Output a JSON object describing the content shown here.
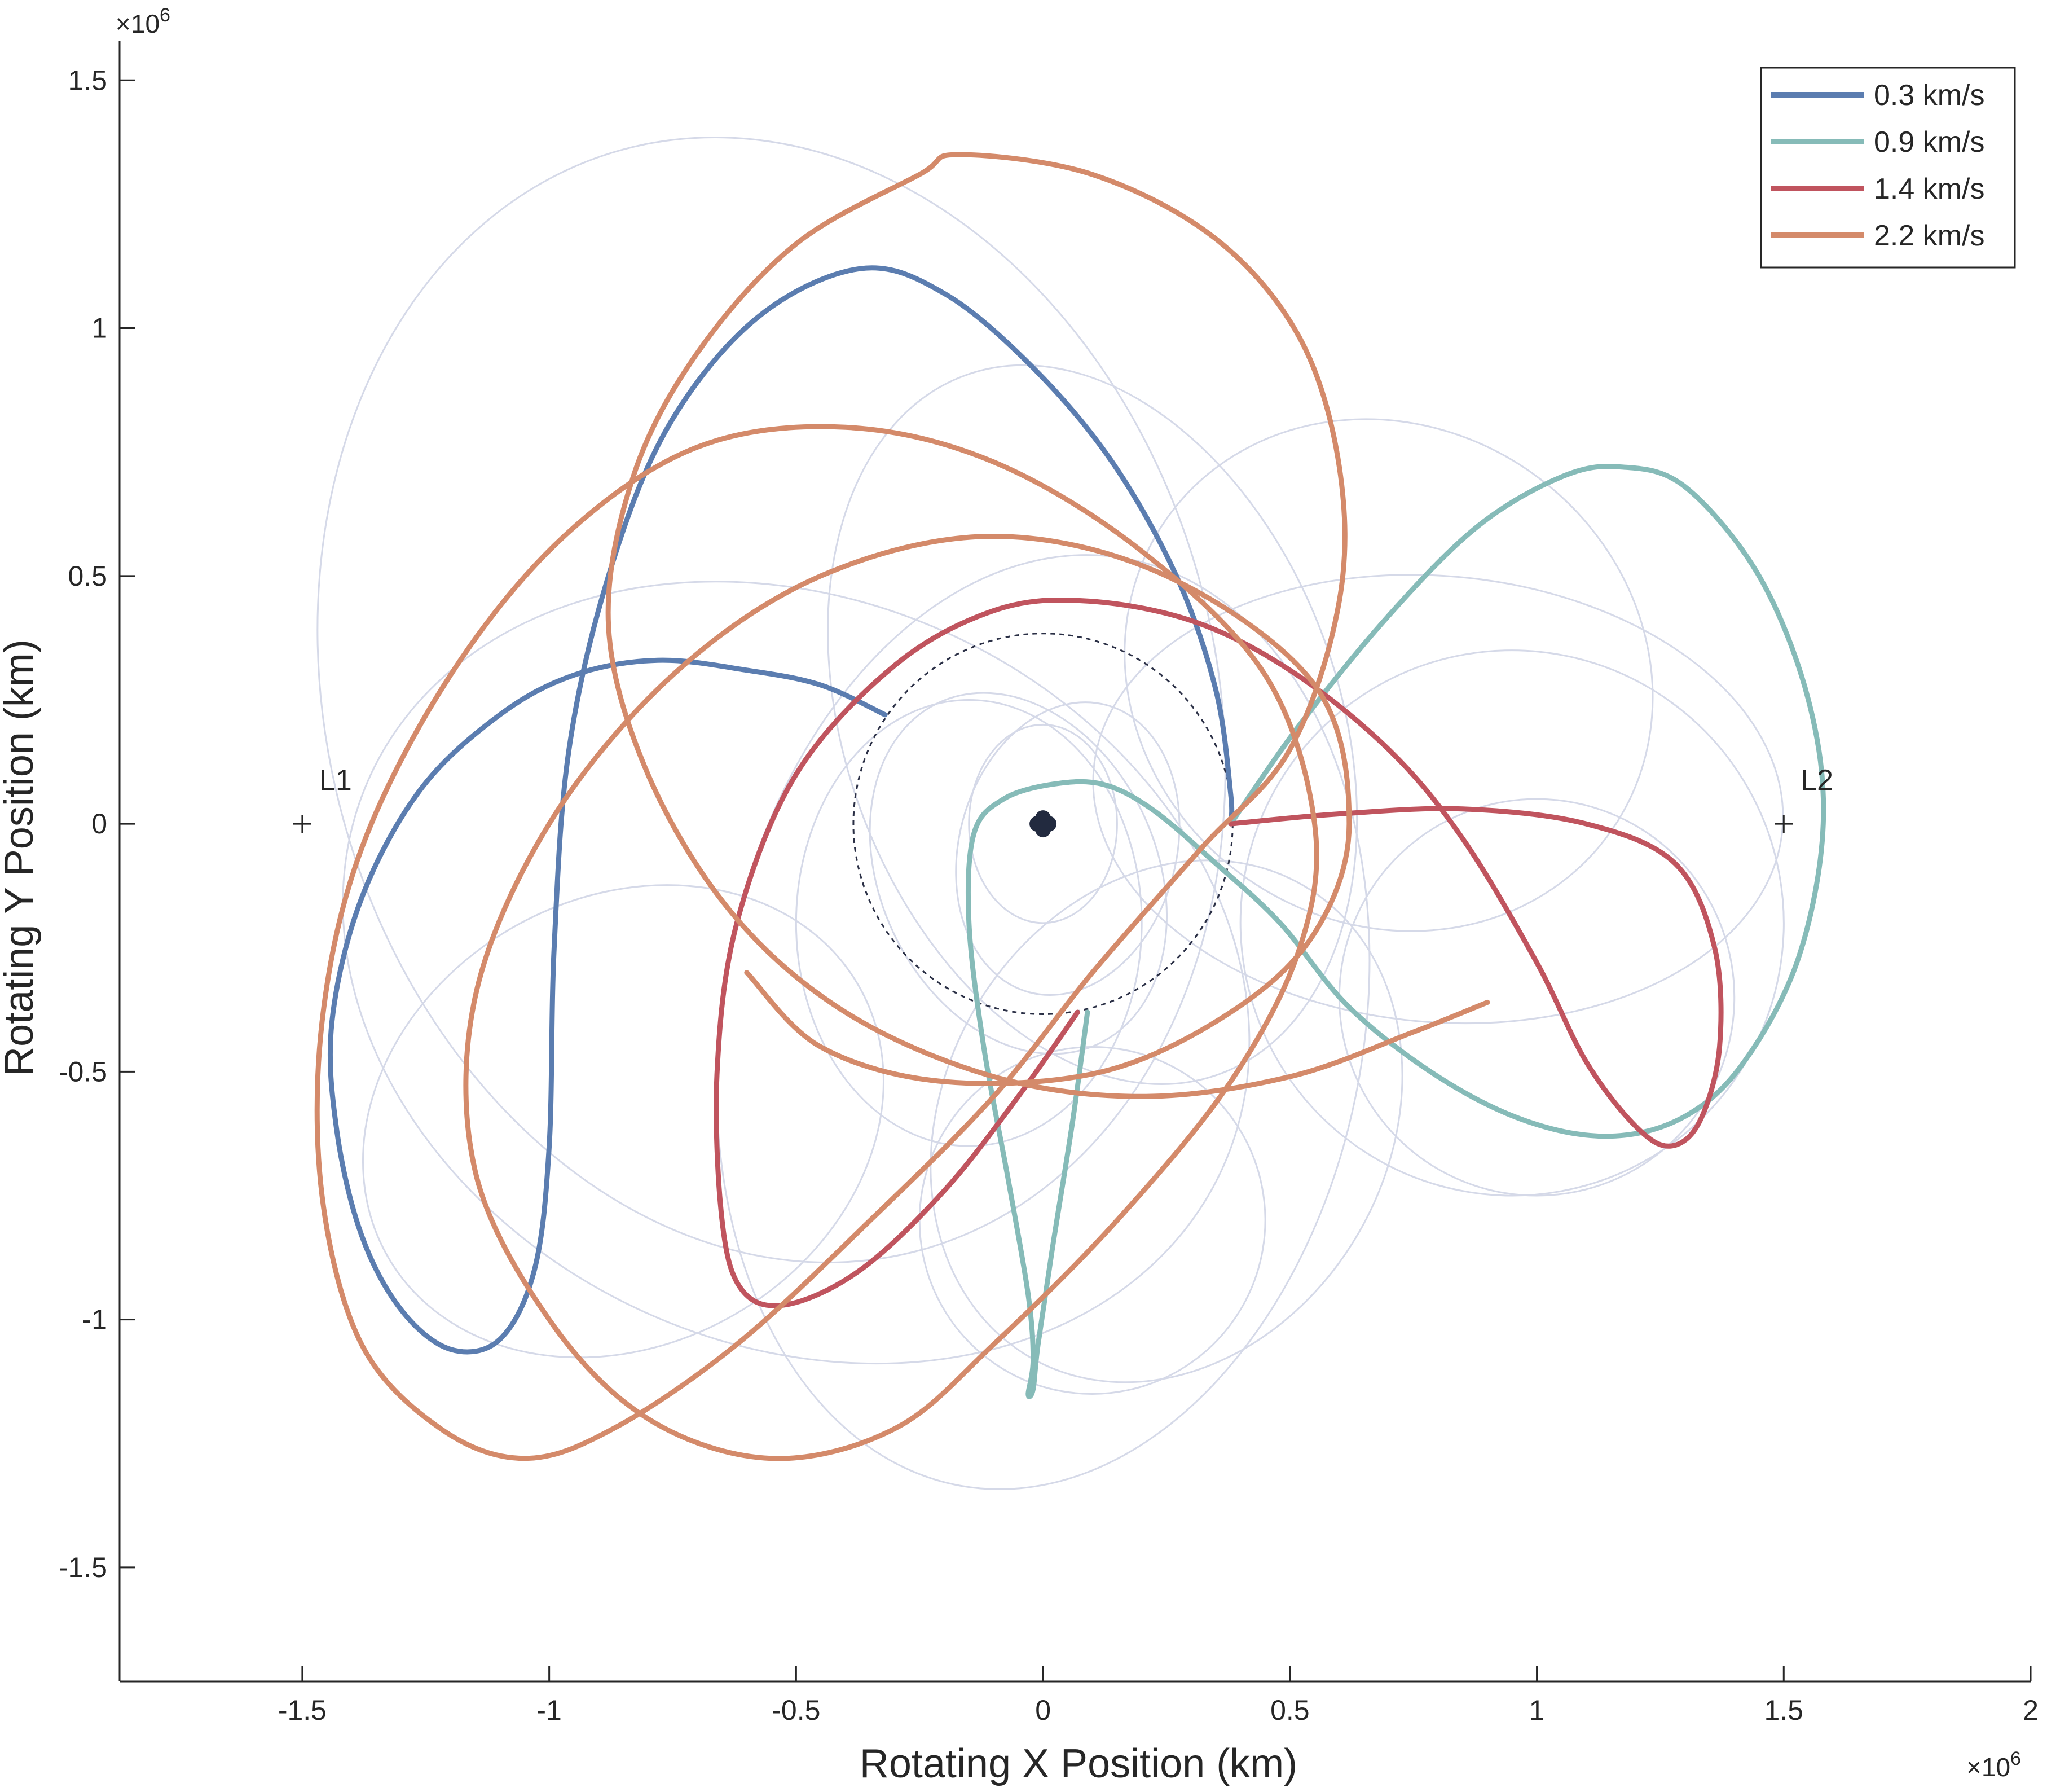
{
  "chart_data": {
    "type": "line",
    "xlabel": "Rotating X Position (km)",
    "ylabel": "Rotating Y Position (km)",
    "x_exponent": "×10",
    "x_exponent_power": "6",
    "y_exponent": "×10",
    "y_exponent_power": "6",
    "xlim": [
      -1.87,
      2.0
    ],
    "ylim": [
      -1.73,
      1.58
    ],
    "xticks": [
      -1.5,
      -1,
      -0.5,
      0,
      0.5,
      1,
      1.5,
      2
    ],
    "xtick_labels": [
      "-1.5",
      "-1",
      "-0.5",
      "0",
      "0.5",
      "1",
      "1.5",
      "2"
    ],
    "yticks": [
      -1.5,
      -1,
      -0.5,
      0,
      0.5,
      1,
      1.5
    ],
    "ytick_labels": [
      "-1.5",
      "-1",
      "-0.5",
      "0",
      "0.5",
      "1",
      "1.5"
    ],
    "grid": false,
    "legend_position": "top-right",
    "points": [
      {
        "label": "L1",
        "x": -1.5,
        "y": 0
      },
      {
        "label": "L2",
        "x": 1.5,
        "y": 0
      }
    ],
    "center_body": {
      "x": 0,
      "y": 0
    },
    "moon_orbit_radius": 0.384,
    "series": [
      {
        "name": "0.3 km/s",
        "color": "#5B7DB0",
        "points": [
          [
            -0.32,
            0.22
          ],
          [
            -0.45,
            0.28
          ],
          [
            -0.6,
            0.31
          ],
          [
            -0.78,
            0.33
          ],
          [
            -0.95,
            0.3
          ],
          [
            -1.1,
            0.22
          ],
          [
            -1.26,
            0.07
          ],
          [
            -1.38,
            -0.15
          ],
          [
            -1.44,
            -0.4
          ],
          [
            -1.43,
            -0.62
          ],
          [
            -1.38,
            -0.83
          ],
          [
            -1.3,
            -0.98
          ],
          [
            -1.2,
            -1.06
          ],
          [
            -1.1,
            -1.04
          ],
          [
            -1.03,
            -0.9
          ],
          [
            -1.0,
            -0.65
          ],
          [
            -0.99,
            -0.25
          ],
          [
            -0.96,
            0.15
          ],
          [
            -0.88,
            0.5
          ],
          [
            -0.76,
            0.8
          ],
          [
            -0.58,
            1.02
          ],
          [
            -0.37,
            1.12
          ],
          [
            -0.2,
            1.07
          ],
          [
            -0.02,
            0.92
          ],
          [
            0.14,
            0.73
          ],
          [
            0.27,
            0.5
          ],
          [
            0.35,
            0.27
          ],
          [
            0.38,
            0.06
          ],
          [
            0.38,
            0.0
          ]
        ]
      },
      {
        "name": "0.9 km/s",
        "color": "#86BBB8",
        "points": [
          [
            0.38,
            0.0
          ],
          [
            0.52,
            0.2
          ],
          [
            0.7,
            0.42
          ],
          [
            0.88,
            0.6
          ],
          [
            1.05,
            0.7
          ],
          [
            1.17,
            0.72
          ],
          [
            1.3,
            0.68
          ],
          [
            1.45,
            0.5
          ],
          [
            1.55,
            0.25
          ],
          [
            1.58,
            0.0
          ],
          [
            1.53,
            -0.27
          ],
          [
            1.42,
            -0.48
          ],
          [
            1.3,
            -0.59
          ],
          [
            1.15,
            -0.63
          ],
          [
            0.98,
            -0.6
          ],
          [
            0.8,
            -0.51
          ],
          [
            0.62,
            -0.37
          ],
          [
            0.48,
            -0.2
          ],
          [
            0.35,
            -0.08
          ],
          [
            0.22,
            0.03
          ],
          [
            0.12,
            0.08
          ],
          [
            0.02,
            0.08
          ],
          [
            -0.08,
            0.05
          ],
          [
            -0.14,
            -0.02
          ],
          [
            -0.15,
            -0.2
          ],
          [
            -0.12,
            -0.45
          ],
          [
            -0.07,
            -0.72
          ],
          [
            -0.03,
            -0.95
          ],
          [
            -0.02,
            -1.08
          ],
          [
            -0.03,
            -1.15
          ],
          [
            -0.02,
            -1.14
          ],
          [
            -0.01,
            -1.05
          ],
          [
            0.02,
            -0.85
          ],
          [
            0.06,
            -0.6
          ],
          [
            0.09,
            -0.38
          ]
        ]
      },
      {
        "name": "1.4 km/s",
        "color": "#C0545E",
        "points": [
          [
            0.07,
            -0.38
          ],
          [
            -0.05,
            -0.55
          ],
          [
            -0.2,
            -0.74
          ],
          [
            -0.37,
            -0.9
          ],
          [
            -0.52,
            -0.97
          ],
          [
            -0.61,
            -0.94
          ],
          [
            -0.65,
            -0.8
          ],
          [
            -0.66,
            -0.5
          ],
          [
            -0.62,
            -0.2
          ],
          [
            -0.5,
            0.1
          ],
          [
            -0.3,
            0.32
          ],
          [
            -0.1,
            0.43
          ],
          [
            0.08,
            0.45
          ],
          [
            0.3,
            0.41
          ],
          [
            0.5,
            0.31
          ],
          [
            0.7,
            0.15
          ],
          [
            0.85,
            -0.03
          ],
          [
            1.0,
            -0.28
          ],
          [
            1.1,
            -0.48
          ],
          [
            1.2,
            -0.61
          ],
          [
            1.27,
            -0.65
          ],
          [
            1.33,
            -0.6
          ],
          [
            1.37,
            -0.45
          ],
          [
            1.36,
            -0.25
          ],
          [
            1.28,
            -0.08
          ],
          [
            1.1,
            0.0
          ],
          [
            0.85,
            0.03
          ],
          [
            0.6,
            0.02
          ],
          [
            0.38,
            0.0
          ]
        ]
      },
      {
        "name": "2.2 km/s",
        "color": "#D48A6A",
        "points": [
          [
            0.9,
            -0.36
          ],
          [
            0.75,
            -0.42
          ],
          [
            0.5,
            -0.51
          ],
          [
            0.2,
            -0.55
          ],
          [
            -0.1,
            -0.51
          ],
          [
            -0.4,
            -0.38
          ],
          [
            -0.63,
            -0.18
          ],
          [
            -0.8,
            0.1
          ],
          [
            -0.88,
            0.4
          ],
          [
            -0.83,
            0.7
          ],
          [
            -0.7,
            0.95
          ],
          [
            -0.5,
            1.17
          ],
          [
            -0.25,
            1.31
          ],
          [
            -0.17,
            1.35
          ],
          [
            0.1,
            1.31
          ],
          [
            0.35,
            1.18
          ],
          [
            0.52,
            0.98
          ],
          [
            0.6,
            0.72
          ],
          [
            0.6,
            0.45
          ],
          [
            0.5,
            0.15
          ],
          [
            0.32,
            -0.05
          ],
          [
            0.1,
            -0.3
          ],
          [
            -0.1,
            -0.55
          ],
          [
            -0.35,
            -0.8
          ],
          [
            -0.62,
            -1.05
          ],
          [
            -0.87,
            -1.22
          ],
          [
            -1.05,
            -1.28
          ],
          [
            -1.22,
            -1.22
          ],
          [
            -1.38,
            -1.05
          ],
          [
            -1.46,
            -0.75
          ],
          [
            -1.46,
            -0.4
          ],
          [
            -1.38,
            -0.05
          ],
          [
            -1.2,
            0.3
          ],
          [
            -0.97,
            0.58
          ],
          [
            -0.7,
            0.76
          ],
          [
            -0.4,
            0.8
          ],
          [
            -0.1,
            0.73
          ],
          [
            0.2,
            0.55
          ],
          [
            0.45,
            0.3
          ],
          [
            0.55,
            0.0
          ],
          [
            0.52,
            -0.25
          ],
          [
            0.38,
            -0.52
          ],
          [
            0.15,
            -0.8
          ],
          [
            -0.1,
            -1.05
          ],
          [
            -0.3,
            -1.22
          ],
          [
            -0.55,
            -1.28
          ],
          [
            -0.8,
            -1.2
          ],
          [
            -1.0,
            -1.0
          ],
          [
            -1.15,
            -0.7
          ],
          [
            -1.15,
            -0.35
          ],
          [
            -1.0,
            0.0
          ],
          [
            -0.75,
            0.3
          ],
          [
            -0.45,
            0.5
          ],
          [
            -0.1,
            0.58
          ],
          [
            0.25,
            0.5
          ],
          [
            0.55,
            0.28
          ],
          [
            0.62,
            0.0
          ],
          [
            0.55,
            -0.22
          ],
          [
            0.38,
            -0.38
          ],
          [
            0.12,
            -0.5
          ],
          [
            -0.2,
            -0.52
          ],
          [
            -0.45,
            -0.45
          ],
          [
            -0.6,
            -0.3
          ]
        ]
      }
    ],
    "background_trajectories_color": "#D5D9E8"
  }
}
